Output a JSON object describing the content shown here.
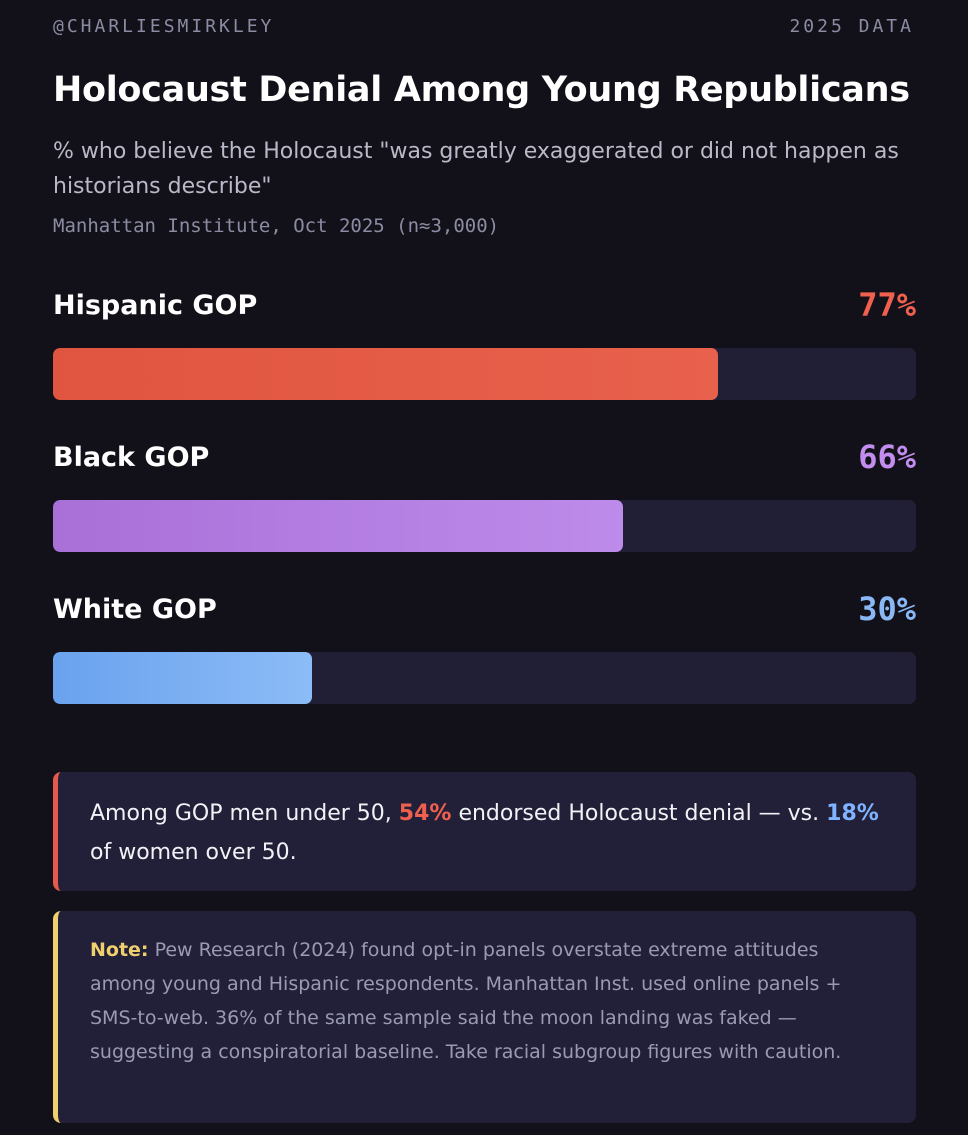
{
  "header": {
    "handle": "@CHARLIESMIRKLEY",
    "year_label": "2025 DATA"
  },
  "chart_data": {
    "type": "bar",
    "orientation": "horizontal",
    "title": "Holocaust Denial Among Young Republicans",
    "subtitle": "% who believe the Holocaust \"was greatly exaggerated or did not happen as historians describe\"",
    "source": "Manhattan Institute, Oct 2025 (n≈3,000)",
    "xlim": [
      0,
      100
    ],
    "grid": false,
    "categories": [
      "Hispanic GOP",
      "Black GOP",
      "White GOP"
    ],
    "values": [
      77,
      66,
      30
    ],
    "value_labels": [
      "77%",
      "66%",
      "30%"
    ],
    "colors": [
      {
        "fill_start": "#e0553f",
        "fill_end": "#e8614c",
        "label": "#f0604e"
      },
      {
        "fill_start": "#a970d8",
        "fill_end": "#bd8bea",
        "label": "#c38df0"
      },
      {
        "fill_start": "#6aa2ee",
        "fill_end": "#8cbcf7",
        "label": "#8ab8f5"
      }
    ]
  },
  "callout": {
    "text_before": "Among GOP men under 50, ",
    "highlight_1": "54%",
    "text_middle": " endorsed Holocaust denial — vs. ",
    "highlight_2": "18%",
    "text_after": " of women over 50.",
    "accent": "#e55a4a"
  },
  "note": {
    "label": "Note:",
    "text": " Pew Research (2024) found opt-in panels overstate extreme attitudes among young and Hispanic respondents. Manhattan Inst. used online panels + SMS-to-web. 36% of the same sample said the moon landing was faked — suggesting a conspiratorial baseline. Take racial subgroup figures with caution.",
    "accent": "#f0cf6e"
  }
}
